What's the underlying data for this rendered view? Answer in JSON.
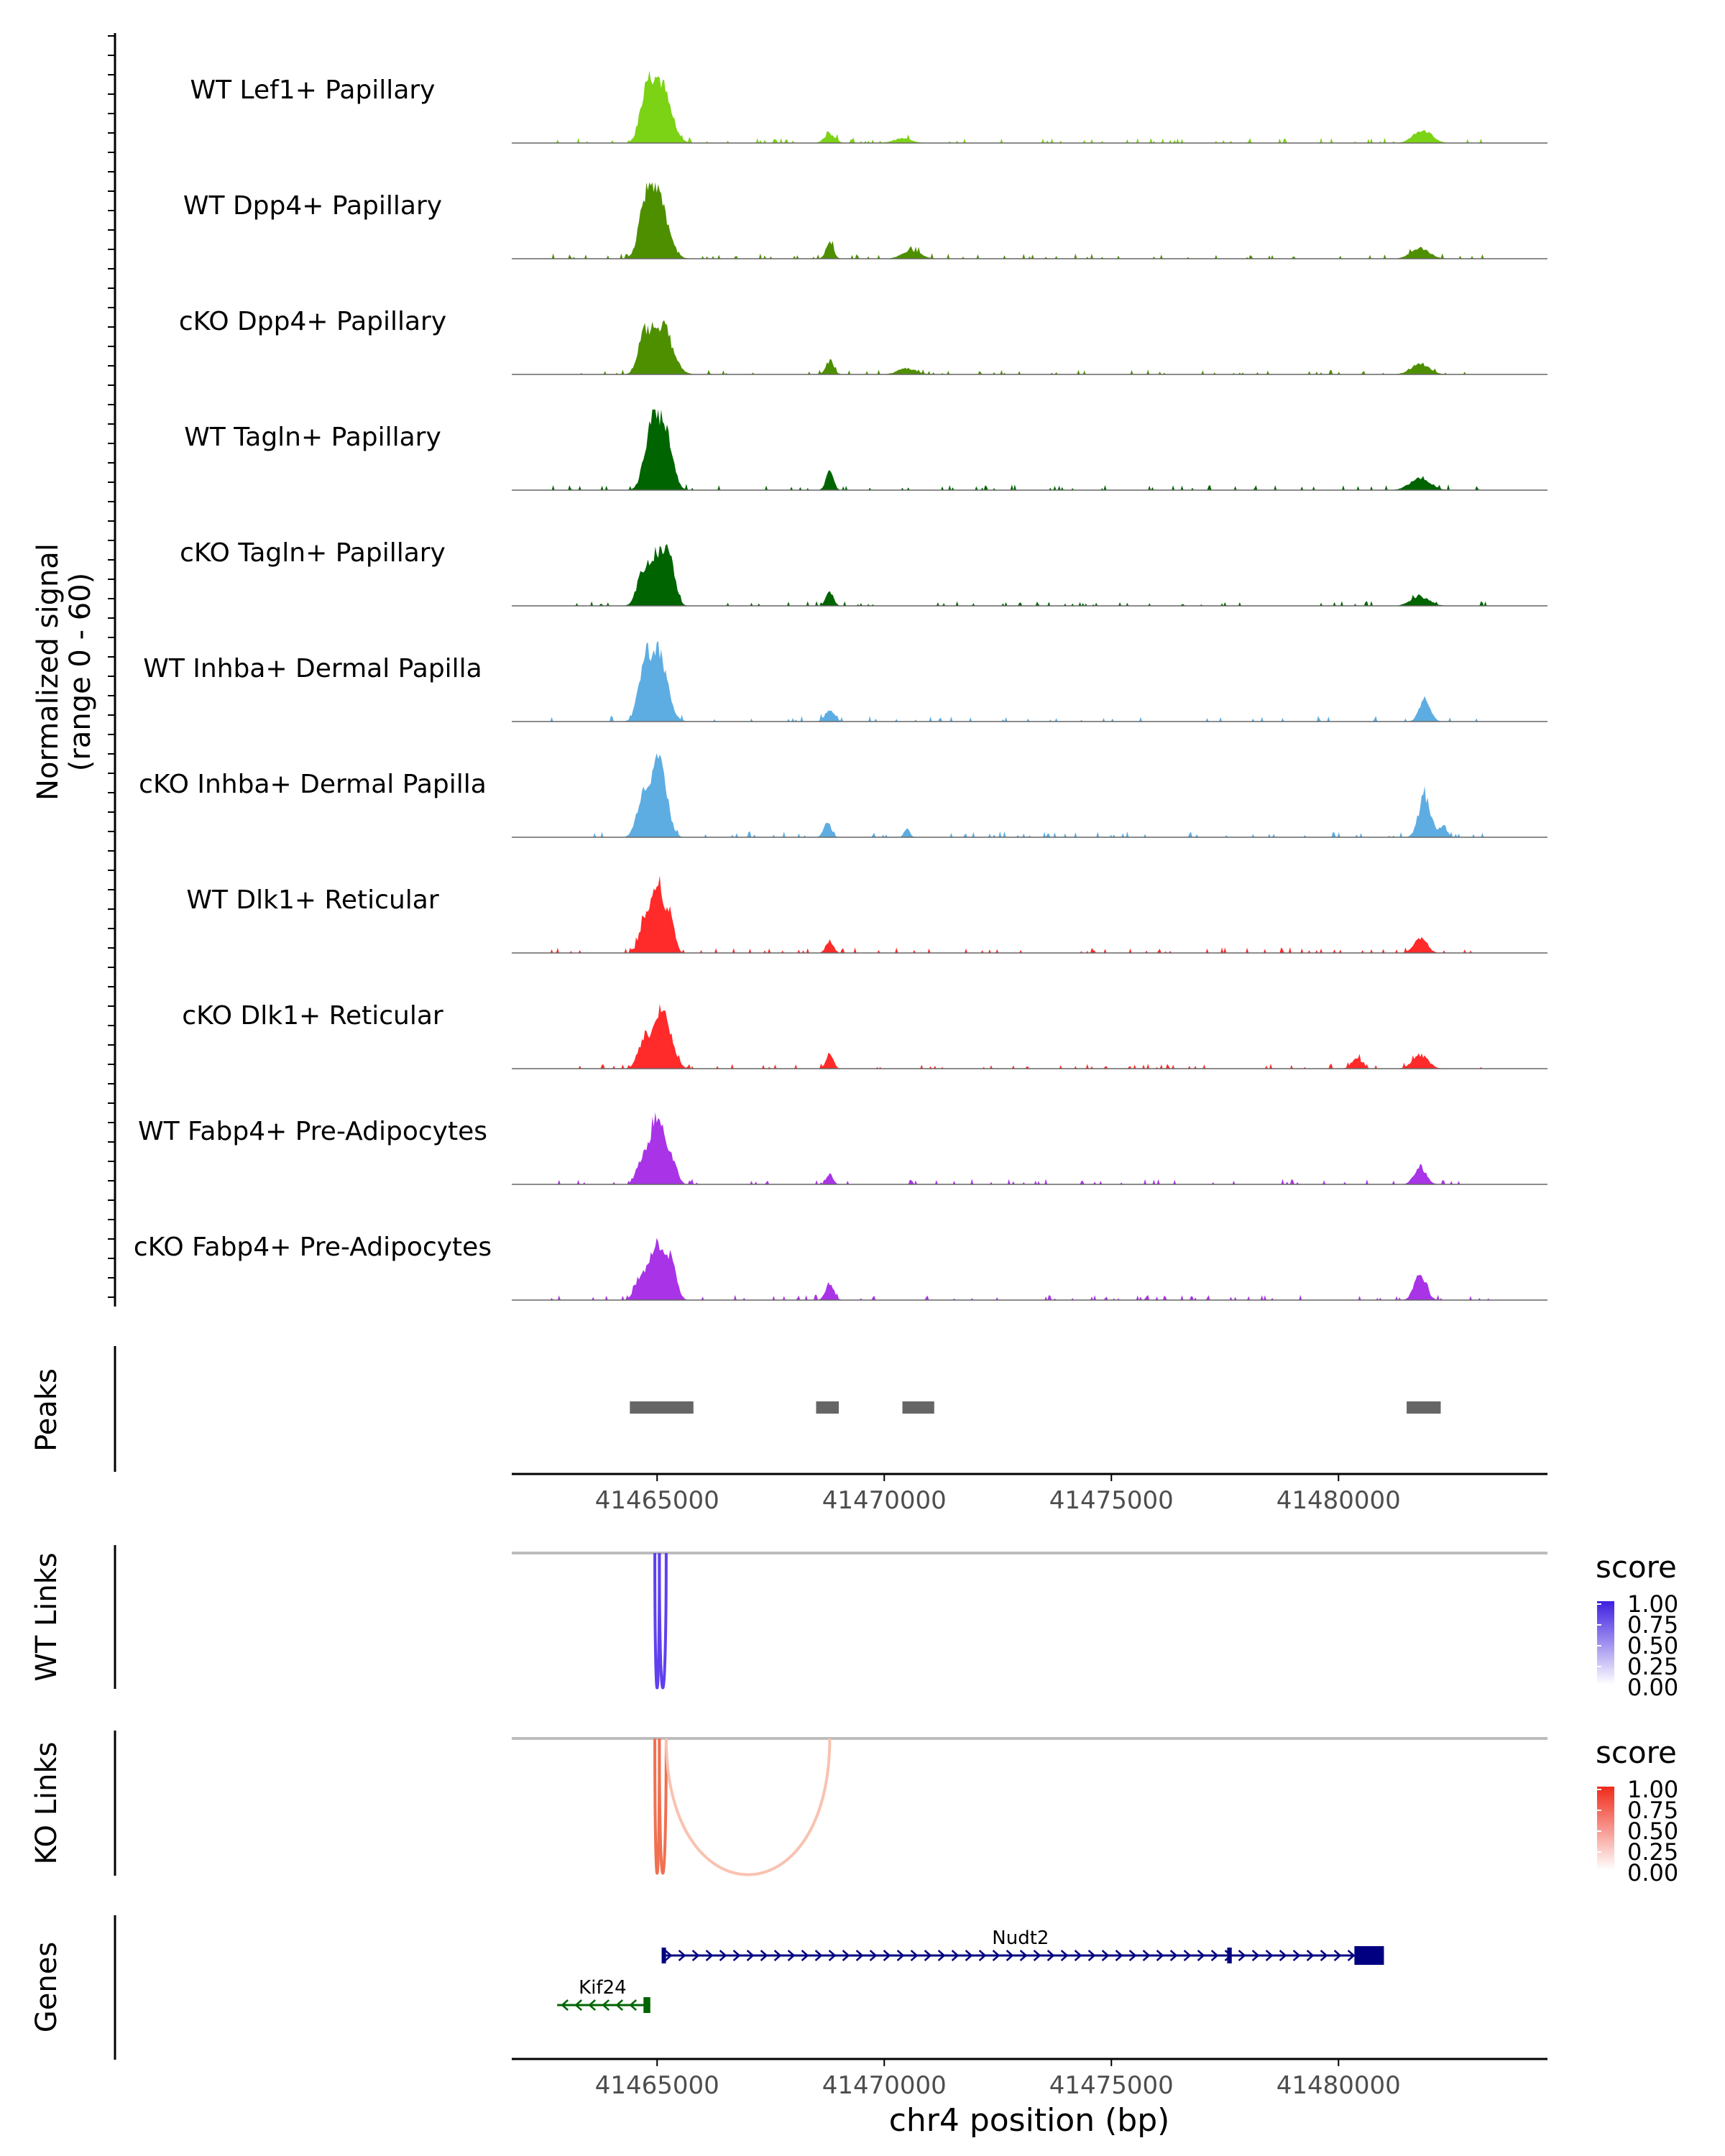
{
  "chart_data": {
    "type": "area",
    "title": "",
    "xlabel": "chr4 position (bp)",
    "region": {
      "chrom": "chr4",
      "start": 41461800,
      "end": 41484600
    },
    "xticks": [
      41465000,
      41470000,
      41475000,
      41480000
    ],
    "xtick_labels": [
      "41465000",
      "41470000",
      "41475000",
      "41480000"
    ],
    "coverage": {
      "ylabel_line1": "Normalized signal",
      "ylabel_line2": "(range 0 - 60)",
      "ylim": [
        0,
        60
      ],
      "tracks": [
        {
          "name": "WT Lef1+ Papillary",
          "color": "#7CD215",
          "scale": 0.9,
          "peaks": [
            [
              41464750,
              0.55,
              130
            ],
            [
              41465050,
              0.95,
              220
            ],
            [
              41468800,
              0.14,
              120
            ],
            [
              41470400,
              0.07,
              200
            ],
            [
              41481850,
              0.2,
              200
            ]
          ]
        },
        {
          "name": "WT Dpp4+ Papillary",
          "color": "#4E8F00",
          "scale": 0.9,
          "peaks": [
            [
              41464700,
              0.45,
              120
            ],
            [
              41464980,
              1.0,
              220
            ],
            [
              41468800,
              0.28,
              80
            ],
            [
              41470600,
              0.12,
              200
            ],
            [
              41481800,
              0.16,
              200
            ]
          ]
        },
        {
          "name": "cKO Dpp4+ Papillary",
          "color": "#4E8F00",
          "scale": 0.82,
          "peaks": [
            [
              41464700,
              0.55,
              130
            ],
            [
              41465100,
              0.85,
              220
            ],
            [
              41468800,
              0.22,
              90
            ],
            [
              41470500,
              0.1,
              200
            ],
            [
              41481800,
              0.18,
              200
            ]
          ]
        },
        {
          "name": "WT Tagln+ Papillary",
          "color": "#006400",
          "scale": 0.95,
          "peaks": [
            [
              41464900,
              1.0,
              160
            ],
            [
              41465200,
              0.75,
              150
            ],
            [
              41468800,
              0.3,
              80
            ],
            [
              41481800,
              0.18,
              220
            ]
          ]
        },
        {
          "name": "cKO Tagln+ Papillary",
          "color": "#006400",
          "scale": 0.8,
          "peaks": [
            [
              41464650,
              0.45,
              120
            ],
            [
              41464950,
              0.8,
              150
            ],
            [
              41465250,
              0.85,
              130
            ],
            [
              41468800,
              0.25,
              80
            ],
            [
              41481800,
              0.16,
              200
            ]
          ]
        },
        {
          "name": "WT Inhba+ Dermal Papilla",
          "color": "#5DADE2",
          "scale": 0.95,
          "peaks": [
            [
              41464700,
              0.55,
              130
            ],
            [
              41465000,
              1.0,
              200
            ],
            [
              41468800,
              0.18,
              100
            ],
            [
              41481900,
              0.32,
              120
            ]
          ]
        },
        {
          "name": "cKO Inhba+ Dermal Papilla",
          "color": "#5DADE2",
          "scale": 1.0,
          "peaks": [
            [
              41464700,
              0.55,
              140
            ],
            [
              41465050,
              1.0,
              160
            ],
            [
              41468750,
              0.22,
              80
            ],
            [
              41470500,
              0.12,
              60
            ],
            [
              41481900,
              0.55,
              130
            ],
            [
              41482300,
              0.15,
              90
            ]
          ]
        },
        {
          "name": "WT Dlk1+ Reticular",
          "color": "#FF2A2A",
          "scale": 0.97,
          "peaks": [
            [
              41464700,
              0.35,
              110
            ],
            [
              41465000,
              1.0,
              150
            ],
            [
              41465300,
              0.45,
              90
            ],
            [
              41468800,
              0.18,
              80
            ],
            [
              41481800,
              0.22,
              140
            ]
          ]
        },
        {
          "name": "cKO Dlk1+ Reticular",
          "color": "#FF2A2A",
          "scale": 0.85,
          "peaks": [
            [
              41464700,
              0.4,
              130
            ],
            [
              41465100,
              0.95,
              190
            ],
            [
              41468800,
              0.25,
              80
            ],
            [
              41480400,
              0.18,
              110
            ],
            [
              41481800,
              0.22,
              170
            ]
          ]
        },
        {
          "name": "WT Fabp4+ Pre-Adipocytes",
          "color": "#A933E6",
          "scale": 0.97,
          "peaks": [
            [
              41464650,
              0.3,
              110
            ],
            [
              41465000,
              1.0,
              160
            ],
            [
              41465350,
              0.3,
              100
            ],
            [
              41468800,
              0.15,
              70
            ],
            [
              41481800,
              0.25,
              130
            ]
          ]
        },
        {
          "name": "cKO Fabp4+ Pre-Adipocytes",
          "color": "#A933E6",
          "scale": 0.9,
          "peaks": [
            [
              41464600,
              0.3,
              110
            ],
            [
              41464950,
              0.85,
              150
            ],
            [
              41465300,
              0.6,
              120
            ],
            [
              41468800,
              0.25,
              90
            ],
            [
              41481800,
              0.4,
              130
            ]
          ]
        }
      ]
    },
    "peaks": {
      "label": "Peaks",
      "color": "#666666",
      "regions": [
        [
          41464400,
          41465800
        ],
        [
          41468500,
          41469000
        ],
        [
          41470400,
          41471100
        ],
        [
          41481500,
          41482250
        ]
      ]
    },
    "wt_links": {
      "label": "WT Links",
      "color": "#6040EE",
      "arcs": [
        [
          41464950,
          41465050
        ],
        [
          41465050,
          41465200
        ]
      ],
      "legend": {
        "title": "score",
        "ticks": [
          "1.00",
          "0.75",
          "0.50",
          "0.25",
          "0.00"
        ],
        "color_high": "#3F1FE0",
        "color_low": "#FFFFFF"
      }
    },
    "ko_links": {
      "label": "KO Links",
      "arcs": [
        {
          "start": 41464950,
          "end": 41465050,
          "color": "#F07050"
        },
        {
          "start": 41465050,
          "end": 41465200,
          "color": "#F07050"
        },
        {
          "start": 41465200,
          "end": 41468800,
          "color": "#F9C2B0"
        }
      ],
      "legend": {
        "title": "score",
        "ticks": [
          "1.00",
          "0.75",
          "0.50",
          "0.25",
          "0.00"
        ],
        "color_high": "#F02A1A",
        "color_low": "#FFFFFF"
      }
    },
    "genes": {
      "label": "Genes",
      "items": [
        {
          "name": "Nudt2",
          "strand": "+",
          "start": 41465100,
          "end": 41481000,
          "color": "#000080",
          "exons": [
            [
              41465100,
              41465150
            ],
            [
              41477550,
              41477650
            ],
            [
              41480350,
              41481000
            ]
          ]
        },
        {
          "name": "Kif24",
          "strand": "-",
          "start": 41462800,
          "end": 41464850,
          "color": "#006400",
          "exons": [
            [
              41464700,
              41464850
            ]
          ]
        }
      ]
    }
  }
}
